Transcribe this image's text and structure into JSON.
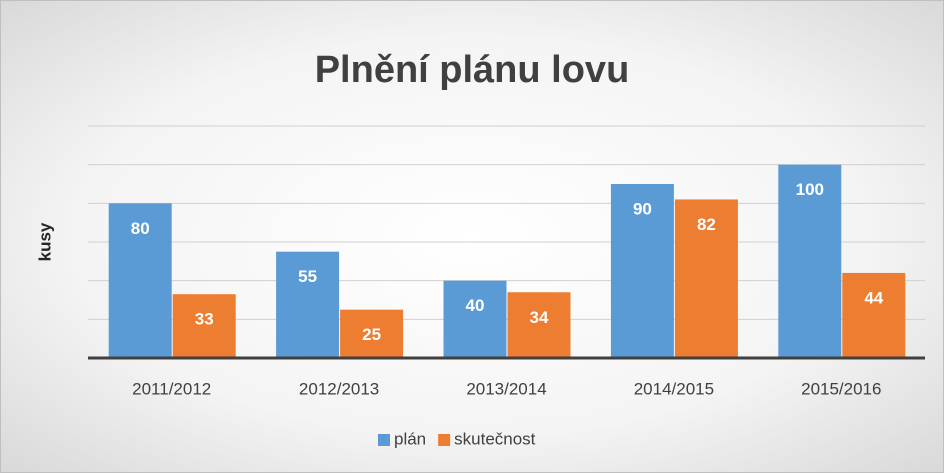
{
  "chart_data": {
    "type": "bar",
    "title": "Plnění plánu lovu",
    "y_label": "kusy",
    "categories": [
      "2011/2012",
      "2012/2013",
      "2013/2014",
      "2014/2015",
      "2015/2016"
    ],
    "series": [
      {
        "name": "plán",
        "color": "#5b9bd5",
        "values": [
          80,
          55,
          40,
          90,
          100
        ]
      },
      {
        "name": "skutečnost",
        "color": "#ed7d31",
        "values": [
          33,
          25,
          34,
          82,
          44
        ]
      }
    ],
    "ylim": [
      0,
      120
    ],
    "yticks": [
      0,
      20,
      40,
      60,
      80,
      100,
      120
    ],
    "grid": true,
    "legend": "bottom"
  }
}
